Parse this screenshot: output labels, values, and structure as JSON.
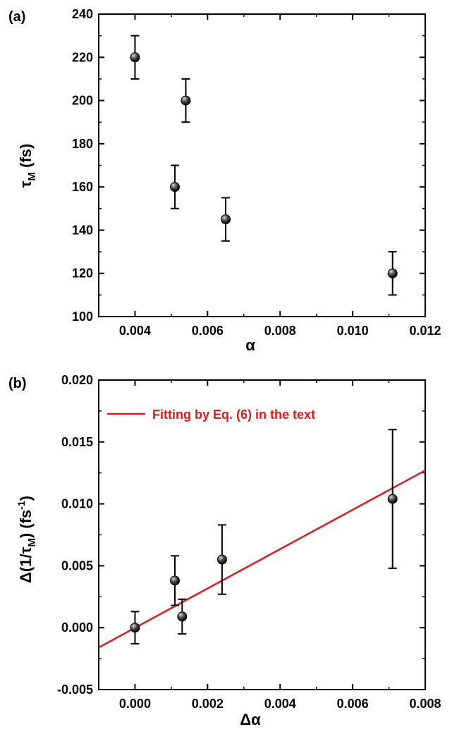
{
  "chart_data": [
    {
      "type": "scatter",
      "panel_label": "(a)",
      "title": "",
      "xlabel": "α",
      "ylabel_main": "τ",
      "ylabel_sub": "M",
      "ylabel_rest": " (fs)",
      "xlim": [
        0.003,
        0.012
      ],
      "ylim": [
        100,
        240
      ],
      "xticks": [
        0.004,
        0.006,
        0.008,
        0.01,
        0.012
      ],
      "xtick_labels": [
        "0.004",
        "0.006",
        "0.008",
        "0.010",
        "0.012"
      ],
      "yticks": [
        100,
        120,
        140,
        160,
        180,
        200,
        220,
        240
      ],
      "ytick_labels": [
        "100",
        "120",
        "140",
        "160",
        "180",
        "200",
        "220",
        "240"
      ],
      "grid": false,
      "series": [
        {
          "points": [
            {
              "x": 0.004,
              "y": 220,
              "err": 10
            },
            {
              "x": 0.0051,
              "y": 160,
              "err": 10
            },
            {
              "x": 0.0054,
              "y": 200,
              "err": 10
            },
            {
              "x": 0.0065,
              "y": 145,
              "err": 10
            },
            {
              "x": 0.0111,
              "y": 120,
              "err": 10
            }
          ]
        }
      ]
    },
    {
      "type": "scatter",
      "panel_label": "(b)",
      "title": "",
      "xlabel": "Δα",
      "ylabel_pre": "Δ(1/τ",
      "ylabel_sub": "M",
      "ylabel_mid": ") (fs",
      "ylabel_sup": "-1",
      "ylabel_post": ")",
      "xlim": [
        -0.001,
        0.008
      ],
      "ylim": [
        -0.005,
        0.02
      ],
      "xticks": [
        0.0,
        0.002,
        0.004,
        0.006,
        0.008
      ],
      "xtick_labels": [
        "0.000",
        "0.002",
        "0.004",
        "0.006",
        "0.008"
      ],
      "yticks": [
        -0.005,
        0.0,
        0.005,
        0.01,
        0.015,
        0.02
      ],
      "ytick_labels": [
        "-0.005",
        "0.000",
        "0.005",
        "0.010",
        "0.015",
        "0.020"
      ],
      "grid": false,
      "legend_position": "top-left",
      "series": [
        {
          "points": [
            {
              "x": 0.0,
              "y": 0.0,
              "err": 0.0013
            },
            {
              "x": 0.0011,
              "y": 0.0038,
              "err": 0.002
            },
            {
              "x": 0.0013,
              "y": 0.0009,
              "err": 0.0014
            },
            {
              "x": 0.0024,
              "y": 0.0055,
              "err": 0.0028
            },
            {
              "x": 0.0071,
              "y": 0.0104,
              "err": 0.0056
            }
          ]
        }
      ],
      "fit": {
        "name": "Fitting by Eq. (6) in the text",
        "color": "#e11b1b",
        "x": [
          -0.001,
          0.008
        ],
        "y": [
          -0.0016,
          0.0127
        ]
      }
    }
  ]
}
